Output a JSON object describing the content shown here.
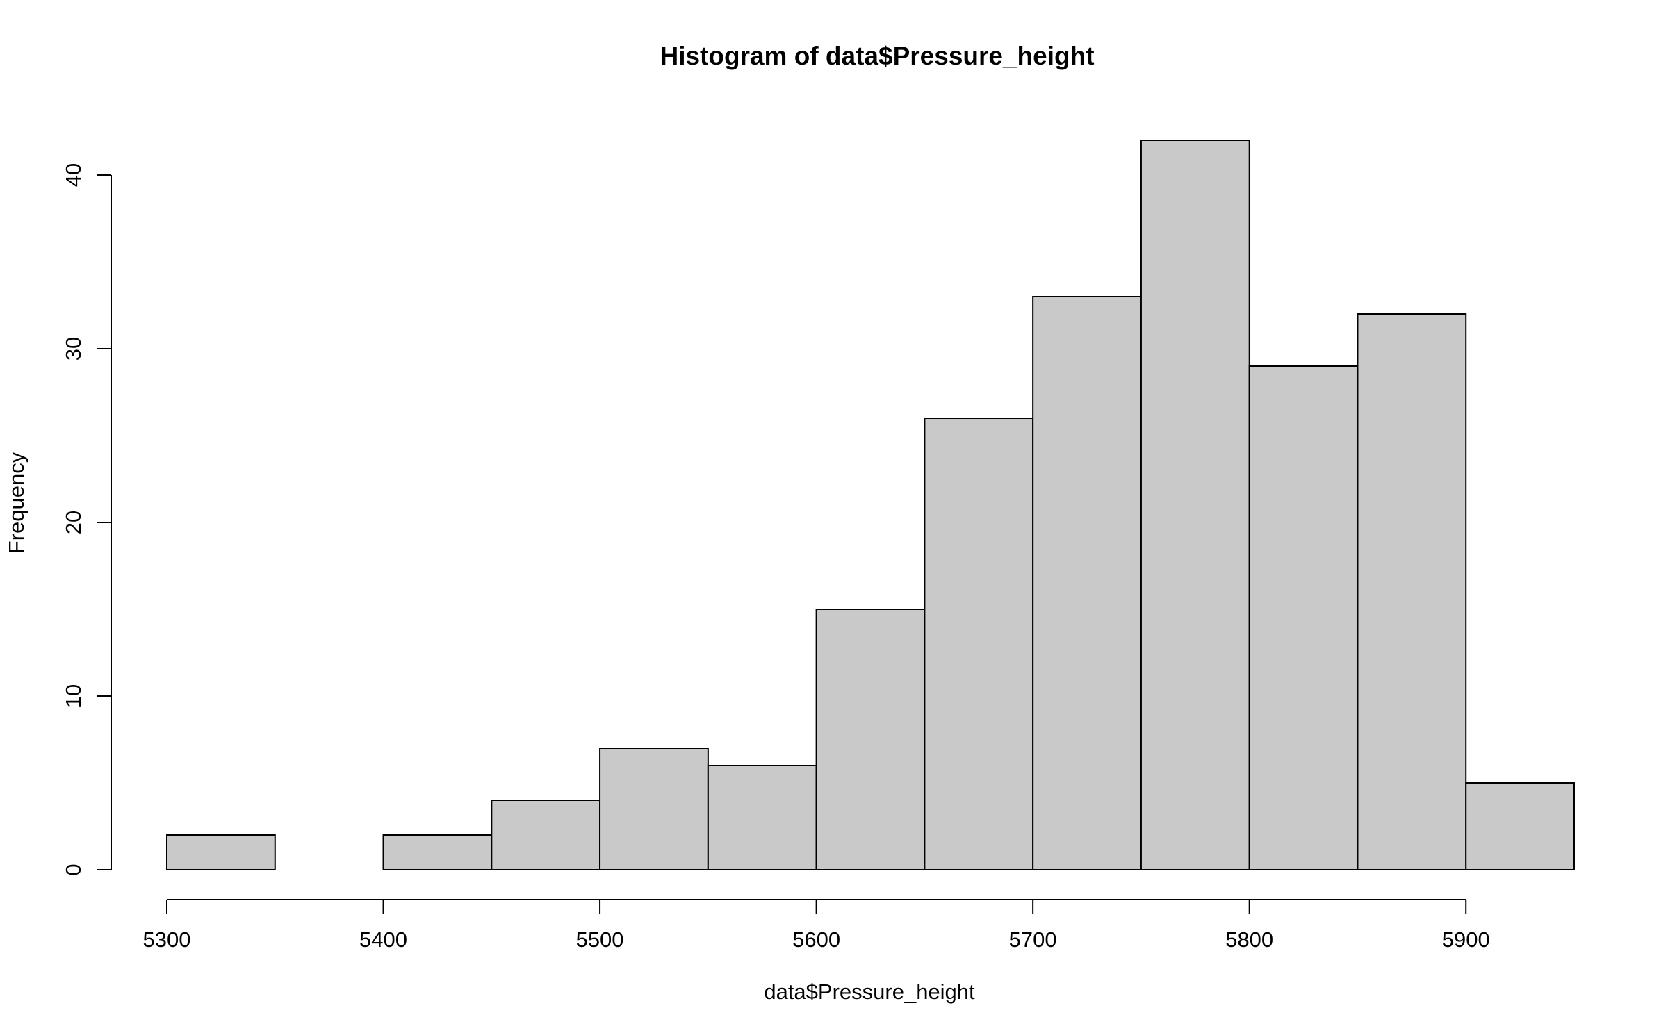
{
  "chart_data": {
    "type": "bar",
    "title": "Histogram of data$Pressure_height",
    "xlabel": "data$Pressure_height",
    "ylabel": "Frequency",
    "bins": [
      [
        5300,
        5350
      ],
      [
        5350,
        5400
      ],
      [
        5400,
        5450
      ],
      [
        5450,
        5500
      ],
      [
        5500,
        5550
      ],
      [
        5550,
        5600
      ],
      [
        5600,
        5650
      ],
      [
        5650,
        5700
      ],
      [
        5700,
        5750
      ],
      [
        5750,
        5800
      ],
      [
        5800,
        5850
      ],
      [
        5850,
        5900
      ],
      [
        5900,
        5950
      ]
    ],
    "values": [
      2,
      0,
      2,
      4,
      7,
      6,
      15,
      26,
      33,
      42,
      29,
      32,
      5
    ],
    "xlim": [
      5300,
      5950
    ],
    "ylim": [
      0,
      42
    ],
    "x_ticks": [
      5300,
      5400,
      5500,
      5600,
      5700,
      5800,
      5900
    ],
    "x_tick_labels": [
      "5300",
      "5400",
      "5500",
      "5600",
      "5700",
      "5800",
      "5900"
    ],
    "y_ticks": [
      0,
      10,
      20,
      30,
      40
    ],
    "y_tick_labels": [
      "0",
      "10",
      "20",
      "30",
      "40"
    ],
    "grid": false,
    "bar_fill": "#c9c9c9",
    "bar_stroke": "#000000"
  }
}
